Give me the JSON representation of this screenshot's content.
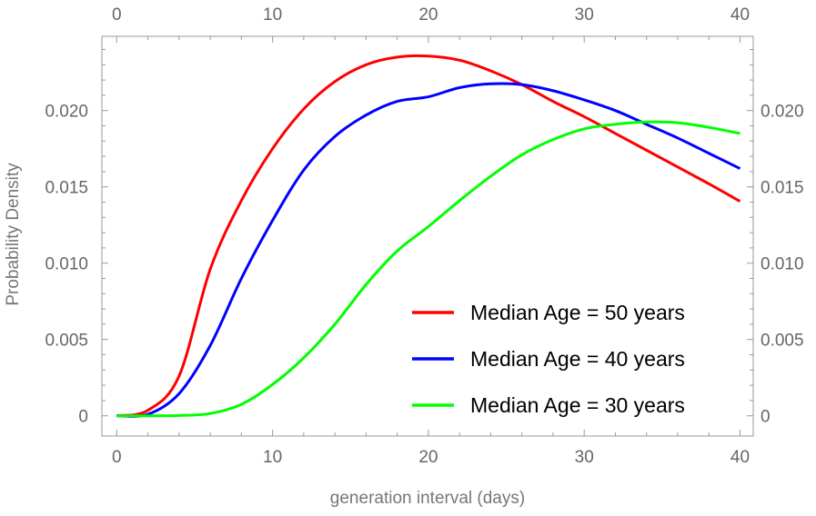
{
  "chart_data": {
    "type": "line",
    "title": "",
    "xlabel": "generation interval (days)",
    "ylabel": "Probability Density",
    "xlim": [
      0,
      40
    ],
    "ylim": [
      0,
      0.0245
    ],
    "x_ticks": [
      "0",
      "10",
      "20",
      "30",
      "40"
    ],
    "y_ticks": [
      "0",
      "0.005",
      "0.010",
      "0.015",
      "0.020"
    ],
    "y_tick_values": [
      0,
      0.005,
      0.01,
      0.015,
      0.02
    ],
    "x_tick_values": [
      0,
      10,
      20,
      30,
      40
    ],
    "frame": "full, ticks mirrored on top and right",
    "grid": false,
    "legend_position": "bottom-right",
    "x": [
      0,
      2,
      4,
      6,
      8,
      10,
      12,
      14,
      16,
      18,
      20,
      22,
      24,
      26,
      28,
      30,
      32,
      34,
      36,
      38,
      40
    ],
    "series": [
      {
        "name": "Median Age = 50 years",
        "color": "#ff0000",
        "values": [
          0,
          0.00036,
          0.0026,
          0.0096,
          0.0141,
          0.0175,
          0.0201,
          0.0219,
          0.023,
          0.0235,
          0.02357,
          0.0233,
          0.0226,
          0.0217,
          0.0206,
          0.0196,
          0.0185,
          0.0174,
          0.0163,
          0.0152,
          0.01405
        ]
      },
      {
        "name": "Median Age = 40 years",
        "color": "#0000ff",
        "values": [
          0,
          0.0001,
          0.00145,
          0.0046,
          0.009,
          0.0128,
          0.0161,
          0.0183,
          0.0197,
          0.0206,
          0.0209,
          0.0215,
          0.02175,
          0.0217,
          0.0213,
          0.0207,
          0.02,
          0.0191,
          0.0182,
          0.0172,
          0.0162
        ]
      },
      {
        "name": "Median Age = 30 years",
        "color": "#00ff00",
        "values": [
          0,
          0,
          2e-05,
          0.00015,
          0.00075,
          0.00205,
          0.0038,
          0.006,
          0.0086,
          0.0108,
          0.0124,
          0.0141,
          0.0157,
          0.0171,
          0.0181,
          0.0188,
          0.0191,
          0.01925,
          0.0192,
          0.0189,
          0.0185
        ]
      }
    ]
  }
}
